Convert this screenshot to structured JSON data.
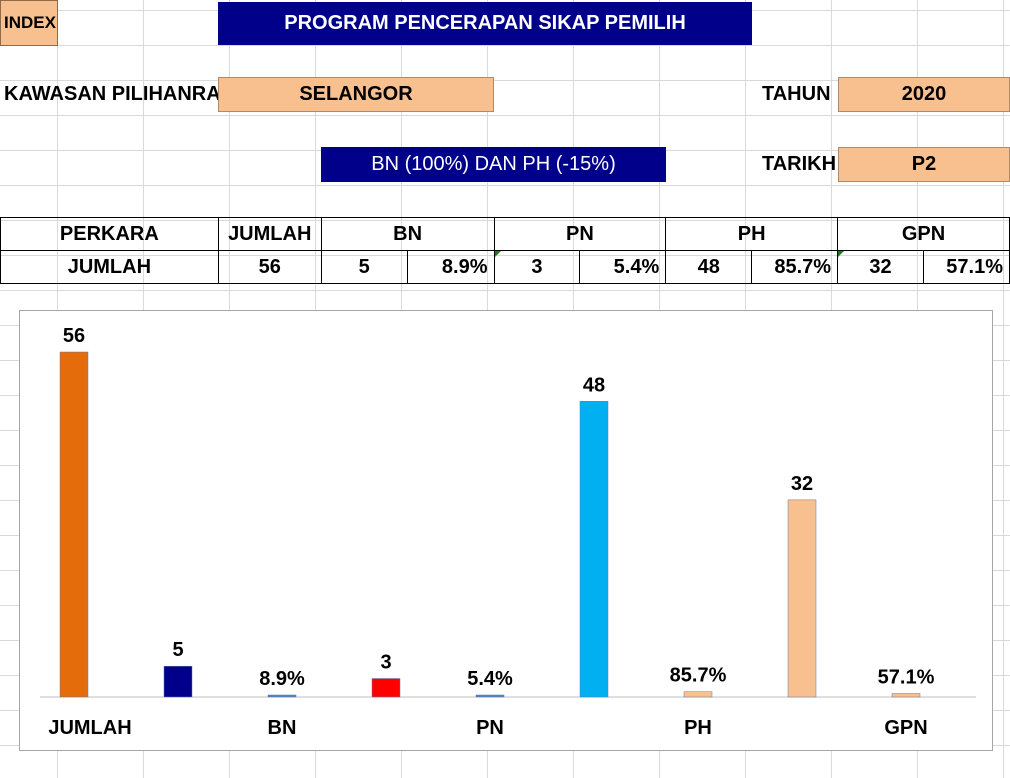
{
  "header": {
    "index_label": "INDEX",
    "title": "PROGRAM PENCERAPAN SIKAP PEMILIH",
    "kawasan_label": "KAWASAN PILIHANRAYA",
    "kawasan_value": "SELANGOR",
    "tahun_label": "TAHUN",
    "tahun_value": "2020",
    "subtitle": "BN (100%) DAN PH (-15%)",
    "tarikh_label": "TARIKH",
    "tarikh_value": "P2"
  },
  "table": {
    "headers": [
      "PERKARA",
      "JUMLAH",
      "BN",
      "PN",
      "PH",
      "GPN"
    ],
    "row": {
      "label": "JUMLAH",
      "jumlah": "56",
      "bn_count": "5",
      "bn_pct": "8.9%",
      "pn_count": "3",
      "pn_pct": "5.4%",
      "ph_count": "48",
      "ph_pct": "85.7%",
      "gpn_count": "32",
      "gpn_pct": "57.1%"
    }
  },
  "colors": {
    "jumlah": "#e46c0a",
    "bn": "#00008b",
    "pn": "#ff0000",
    "ph": "#00b0f0",
    "gpn": "#f8bf8f",
    "pct_bn": "#4f81bd",
    "pct_pn": "#4f81bd",
    "pct_ph": "#f8bf8f",
    "pct_gpn": "#f8bf8f"
  },
  "chart_data": {
    "type": "bar",
    "categories": [
      "JUMLAH",
      "BN",
      "PN",
      "PH",
      "GPN"
    ],
    "bars": [
      {
        "value": 56,
        "label": "56",
        "color": "#e46c0a"
      },
      {
        "value": 5,
        "label": "5",
        "color": "#00008b"
      },
      {
        "value": 0.089,
        "label": "8.9%",
        "color": "#4f81bd"
      },
      {
        "value": 3,
        "label": "3",
        "color": "#ff0000"
      },
      {
        "value": 0.054,
        "label": "5.4%",
        "color": "#4f81bd"
      },
      {
        "value": 48,
        "label": "48",
        "color": "#00b0f0"
      },
      {
        "value": 0.857,
        "label": "85.7%",
        "color": "#f8bf8f"
      },
      {
        "value": 32,
        "label": "32",
        "color": "#f8bf8f"
      },
      {
        "value": 0.571,
        "label": "57.1%",
        "color": "#f8bf8f"
      }
    ],
    "ylim": [
      0,
      56
    ],
    "grid": false,
    "legend": "none"
  }
}
